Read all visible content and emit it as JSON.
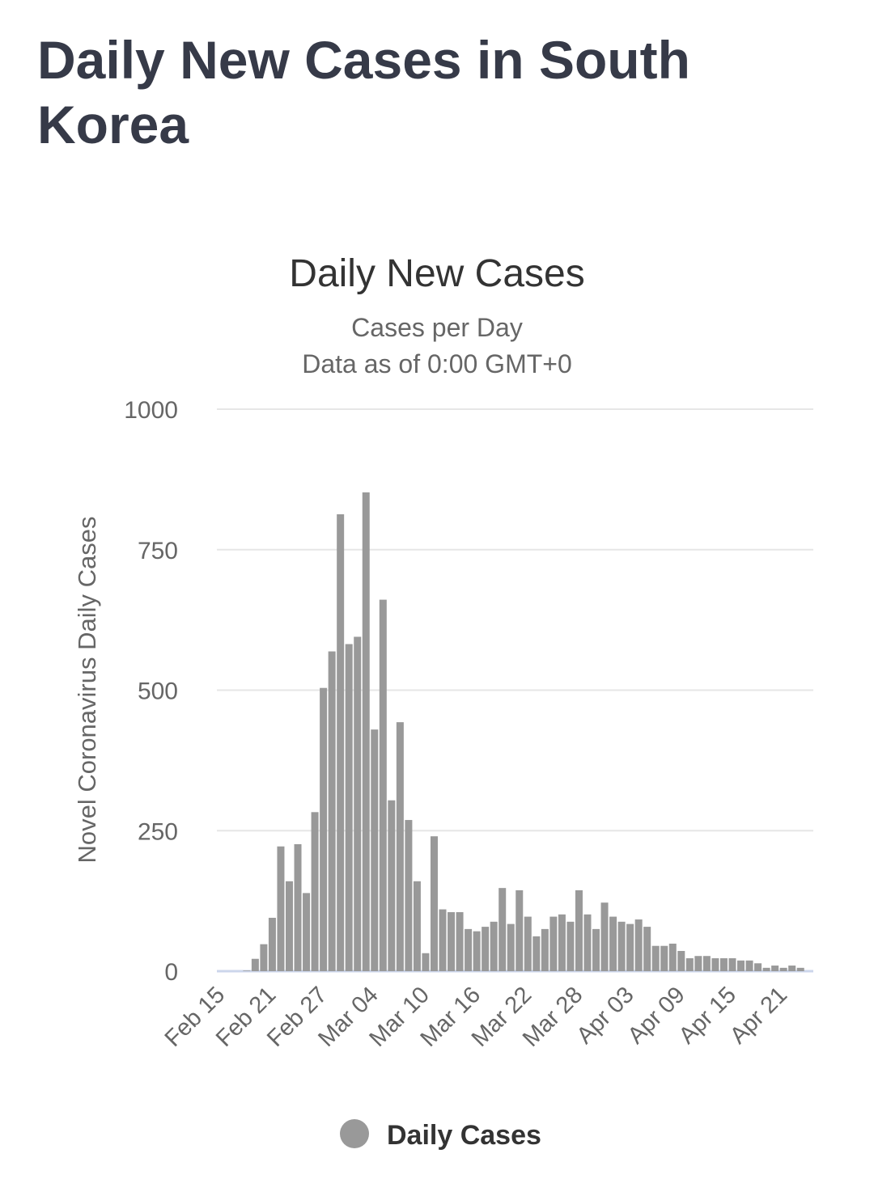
{
  "page_title": "Daily New Cases in South Korea",
  "chart_data": {
    "type": "bar",
    "title": "Daily New Cases",
    "subtitle": "Cases per Day",
    "subtitle2": "Data as of 0:00 GMT+0",
    "ylabel": "Novel Coronavirus Daily Cases",
    "xlabel": "",
    "ylim": [
      0,
      1000
    ],
    "yticks": [
      0,
      250,
      500,
      750,
      1000
    ],
    "grid": true,
    "start_date": "Feb 15",
    "xtick_labels": [
      "Feb 15",
      "Feb 21",
      "Feb 27",
      "Mar 04",
      "Mar 10",
      "Mar 16",
      "Mar 22",
      "Mar 28",
      "Apr 03",
      "Apr 09",
      "Apr 15",
      "Apr 21"
    ],
    "xtick_every_days": 6,
    "legend": {
      "position": "bottom",
      "entries": [
        "Daily Cases"
      ]
    },
    "series": [
      {
        "name": "Daily Cases",
        "color": "#999999",
        "values": [
          0,
          0,
          0,
          1,
          22,
          48,
          95,
          222,
          160,
          226,
          139,
          283,
          504,
          569,
          813,
          582,
          595,
          852,
          430,
          661,
          304,
          443,
          269,
          160,
          32,
          240,
          110,
          105,
          105,
          75,
          71,
          79,
          88,
          148,
          84,
          144,
          97,
          62,
          75,
          97,
          101,
          88,
          144,
          101,
          75,
          122,
          97,
          88,
          84,
          92,
          79,
          45,
          45,
          49,
          36,
          23,
          27,
          27,
          23,
          23,
          23,
          19,
          19,
          14,
          6,
          10,
          6,
          10,
          6
        ]
      }
    ]
  }
}
